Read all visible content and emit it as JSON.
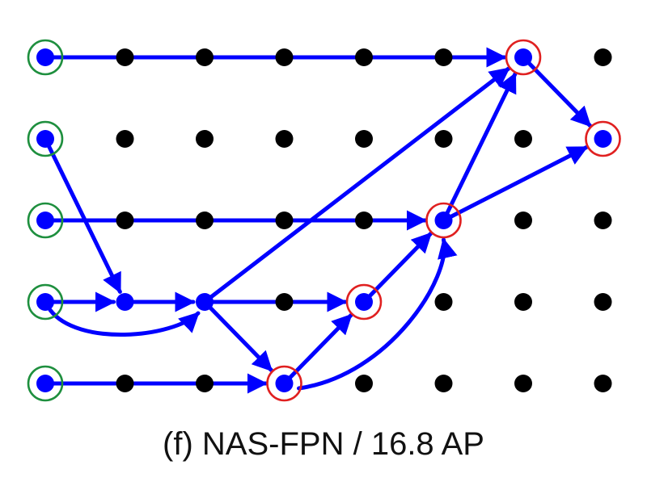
{
  "caption": "(f) NAS-FPN / 16.8 AP",
  "colors": {
    "background": "#ffffff",
    "edge": "#0000ff",
    "active_node": "#0000ff",
    "inactive_node": "#000000",
    "input_ring": "#1e8f3e",
    "output_ring": "#e02020"
  },
  "grid": {
    "rows": 5,
    "cols": 8
  },
  "nodes": {
    "input": [
      [
        0,
        0
      ],
      [
        1,
        0
      ],
      [
        2,
        0
      ],
      [
        3,
        0
      ],
      [
        4,
        0
      ]
    ],
    "intermediate": [
      [
        3,
        1
      ],
      [
        3,
        2
      ]
    ],
    "output": [
      [
        0,
        6
      ],
      [
        1,
        7
      ],
      [
        2,
        5
      ],
      [
        3,
        4
      ],
      [
        4,
        3
      ]
    ]
  },
  "edges": [
    {
      "from": [
        0,
        0
      ],
      "to": [
        0,
        6
      ]
    },
    {
      "from": [
        2,
        0
      ],
      "to": [
        2,
        5
      ]
    },
    {
      "from": [
        4,
        0
      ],
      "to": [
        4,
        3
      ]
    },
    {
      "from": [
        1,
        0
      ],
      "to": [
        3,
        1
      ]
    },
    {
      "from": [
        3,
        0
      ],
      "to": [
        3,
        1
      ]
    },
    {
      "from": [
        3,
        0
      ],
      "to": [
        3,
        2
      ],
      "curve": "below"
    },
    {
      "from": [
        3,
        1
      ],
      "to": [
        3,
        2
      ]
    },
    {
      "from": [
        3,
        2
      ],
      "to": [
        3,
        4
      ]
    },
    {
      "from": [
        3,
        2
      ],
      "to": [
        4,
        3
      ]
    },
    {
      "from": [
        3,
        2
      ],
      "to": [
        0,
        6
      ]
    },
    {
      "from": [
        4,
        3
      ],
      "to": [
        3,
        4
      ]
    },
    {
      "from": [
        4,
        3
      ],
      "to": [
        2,
        5
      ],
      "curve": "above"
    },
    {
      "from": [
        3,
        4
      ],
      "to": [
        2,
        5
      ]
    },
    {
      "from": [
        2,
        5
      ],
      "to": [
        0,
        6
      ]
    },
    {
      "from": [
        2,
        5
      ],
      "to": [
        1,
        7
      ]
    },
    {
      "from": [
        0,
        6
      ],
      "to": [
        1,
        7
      ]
    }
  ]
}
